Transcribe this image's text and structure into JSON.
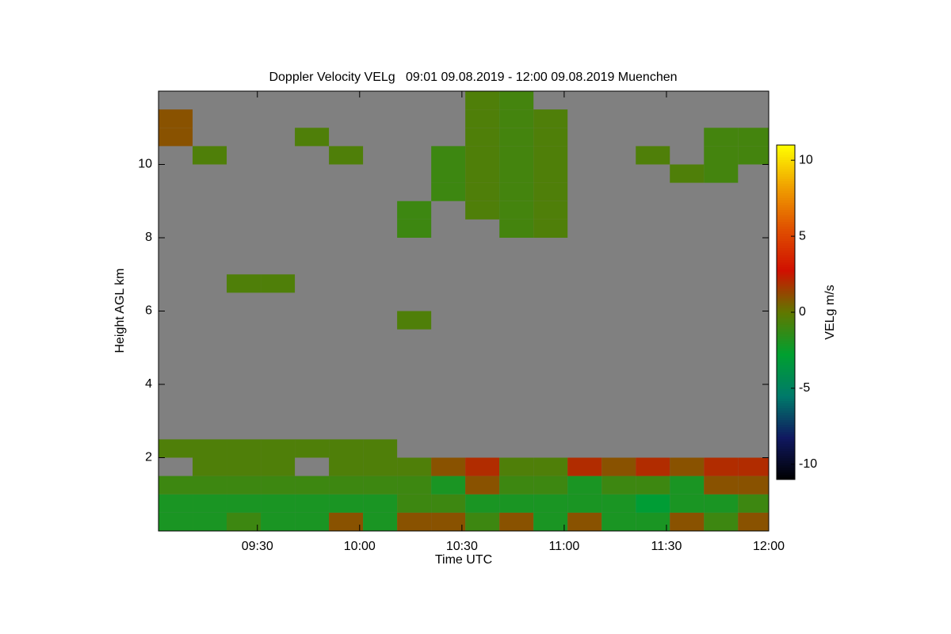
{
  "chart_data": {
    "type": "heatmap",
    "title": "Doppler Velocity VELg   09:01 09.08.2019 - 12:00 09.08.2019 Muenchen",
    "x_label": "Time UTC",
    "y_label": "Height AGL km",
    "colorbar_label": "VELg m/s",
    "xlim": [
      "09:01",
      "12:00"
    ],
    "xticks": [
      "09:30",
      "10:00",
      "10:30",
      "11:00",
      "11:30",
      "12:00"
    ],
    "ylim": [
      0,
      12
    ],
    "yticks": [
      2,
      4,
      6,
      8,
      10
    ],
    "zlim": [
      -11,
      11
    ],
    "zticks": [
      -10,
      -5,
      0,
      5,
      10
    ],
    "colormap": [
      "#000000",
      "#101860",
      "#007a6a",
      "#00a030",
      "#607800",
      "#d01000",
      "#e05000",
      "#f0a000",
      "#ffff00"
    ],
    "background": "#808080",
    "x": [
      "09:01",
      "09:11",
      "09:21",
      "09:31",
      "09:41",
      "09:51",
      "10:01",
      "10:11",
      "10:21",
      "10:31",
      "10:41",
      "10:51",
      "11:01",
      "11:11",
      "11:21",
      "11:31",
      "11:41",
      "11:51"
    ],
    "y": [
      0,
      0.5,
      1,
      1.5,
      2,
      2.5,
      3,
      3.5,
      4,
      4.5,
      5,
      5.5,
      6,
      6.5,
      7,
      7.5,
      8,
      8.5,
      9,
      9.5,
      10,
      10.5,
      11,
      11.5
    ],
    "z": [
      [
        -2,
        -2,
        -1,
        -2,
        -2,
        1,
        -2,
        1,
        1,
        -1,
        1,
        -2,
        1,
        -2,
        -2,
        1,
        -1,
        1
      ],
      [
        -2,
        -2,
        -2,
        -2,
        -2,
        -2,
        -2,
        -1,
        -1,
        -2,
        -2,
        -2,
        -2,
        -2,
        -3,
        -2,
        -2,
        -1
      ],
      [
        -1,
        -1,
        -1,
        -1,
        -1,
        -1,
        -1,
        -1,
        -2,
        1,
        -1,
        -1,
        -2,
        -1,
        -1,
        -2,
        1,
        1
      ],
      [
        null,
        -0.5,
        -0.5,
        -0.5,
        null,
        -0.5,
        -0.5,
        -0.5,
        1,
        2,
        -0.5,
        -0.5,
        2,
        1,
        2,
        1,
        2,
        2
      ],
      [
        -0.5,
        -0.5,
        -0.5,
        -0.5,
        -0.5,
        -0.5,
        -0.5,
        null,
        null,
        null,
        null,
        null,
        null,
        null,
        null,
        null,
        null,
        null
      ],
      [
        null,
        null,
        null,
        null,
        null,
        null,
        null,
        null,
        null,
        null,
        null,
        null,
        null,
        null,
        null,
        null,
        null,
        null
      ],
      [
        null,
        null,
        null,
        null,
        null,
        null,
        null,
        null,
        null,
        null,
        null,
        null,
        null,
        null,
        null,
        null,
        null,
        null
      ],
      [
        null,
        null,
        null,
        null,
        null,
        null,
        null,
        null,
        null,
        null,
        null,
        null,
        null,
        null,
        null,
        null,
        null,
        null
      ],
      [
        null,
        null,
        null,
        null,
        null,
        null,
        null,
        null,
        null,
        null,
        null,
        null,
        null,
        null,
        null,
        null,
        null,
        null
      ],
      [
        null,
        null,
        null,
        null,
        null,
        null,
        null,
        null,
        null,
        null,
        null,
        null,
        null,
        null,
        null,
        null,
        null,
        null
      ],
      [
        null,
        null,
        null,
        null,
        null,
        null,
        null,
        null,
        null,
        null,
        null,
        null,
        null,
        null,
        null,
        null,
        null,
        null
      ],
      [
        null,
        null,
        null,
        null,
        null,
        null,
        null,
        -0.5,
        null,
        null,
        null,
        null,
        null,
        null,
        null,
        null,
        null,
        null
      ],
      [
        null,
        null,
        null,
        null,
        null,
        null,
        null,
        null,
        null,
        null,
        null,
        null,
        null,
        null,
        null,
        null,
        null,
        null
      ],
      [
        null,
        null,
        -0.5,
        -0.5,
        null,
        null,
        null,
        null,
        null,
        null,
        null,
        null,
        null,
        null,
        null,
        null,
        null,
        null
      ],
      [
        null,
        null,
        null,
        null,
        null,
        null,
        null,
        null,
        null,
        null,
        null,
        null,
        null,
        null,
        null,
        null,
        null,
        null
      ],
      [
        null,
        null,
        null,
        null,
        null,
        null,
        null,
        null,
        null,
        null,
        null,
        null,
        null,
        null,
        null,
        null,
        null,
        null
      ],
      [
        null,
        null,
        null,
        null,
        null,
        null,
        null,
        -1,
        null,
        null,
        -0.8,
        -0.5,
        null,
        null,
        null,
        null,
        null,
        null
      ],
      [
        null,
        null,
        null,
        null,
        null,
        null,
        null,
        -1,
        null,
        -0.5,
        -0.8,
        -0.5,
        null,
        null,
        null,
        null,
        null,
        null
      ],
      [
        null,
        null,
        null,
        null,
        null,
        null,
        null,
        null,
        -1,
        -0.5,
        -0.8,
        -0.5,
        null,
        null,
        null,
        null,
        null,
        null
      ],
      [
        null,
        null,
        null,
        null,
        null,
        null,
        null,
        null,
        -1,
        -0.5,
        -0.8,
        -0.5,
        null,
        null,
        null,
        -0.5,
        -0.8,
        null
      ],
      [
        null,
        -0.5,
        null,
        null,
        null,
        -0.5,
        null,
        null,
        -1,
        -0.5,
        -0.8,
        -0.5,
        null,
        null,
        -0.5,
        null,
        -0.8,
        -0.8
      ],
      [
        1,
        null,
        null,
        null,
        -0.5,
        null,
        null,
        null,
        null,
        -0.5,
        -0.8,
        -0.5,
        null,
        null,
        null,
        null,
        -0.8,
        -0.8
      ],
      [
        1,
        null,
        null,
        null,
        null,
        null,
        null,
        null,
        null,
        -0.5,
        -0.8,
        -0.5,
        null,
        null,
        null,
        null,
        null,
        null
      ],
      [
        null,
        null,
        null,
        null,
        null,
        null,
        null,
        null,
        null,
        -0.5,
        -0.8,
        null,
        null,
        null,
        null,
        null,
        null,
        null
      ]
    ]
  }
}
